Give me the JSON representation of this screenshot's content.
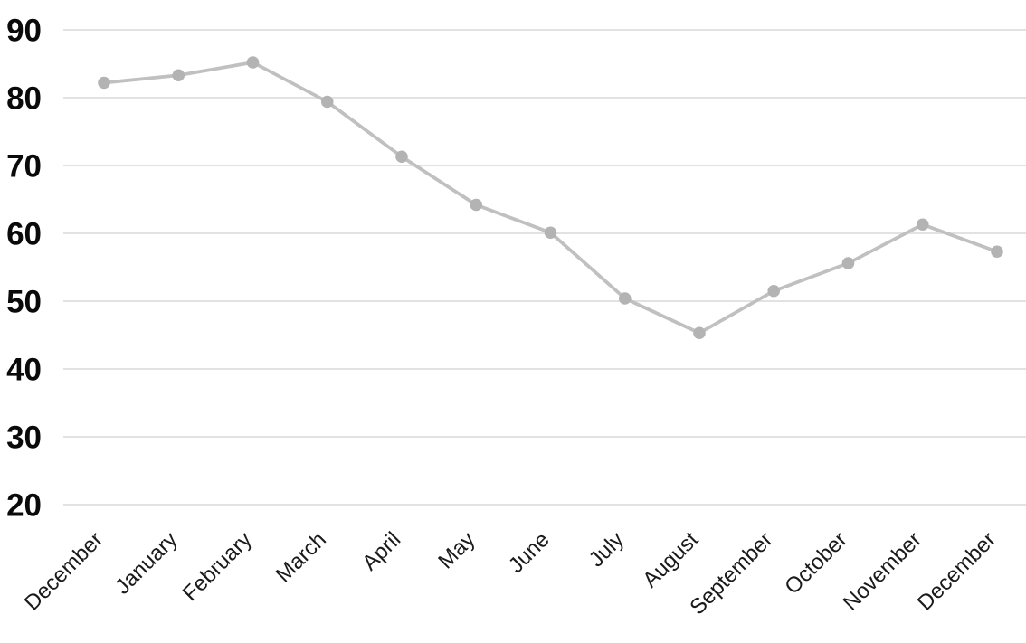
{
  "chart_data": {
    "type": "line",
    "title": "",
    "xlabel": "",
    "ylabel": "",
    "categories": [
      "December",
      "January",
      "February",
      "March",
      "April",
      "May",
      "June",
      "July",
      "August",
      "September",
      "October",
      "November",
      "December"
    ],
    "values": [
      82.2,
      83.3,
      85.2,
      79.4,
      71.3,
      64.2,
      60.1,
      50.4,
      45.3,
      51.5,
      55.6,
      61.3,
      57.3
    ],
    "ylim": [
      20,
      90
    ],
    "yticks": [
      90,
      80,
      70,
      60,
      50,
      40,
      30,
      20
    ],
    "grid": true,
    "legend": false,
    "x_tick_rotation_deg": -45,
    "colors": {
      "line": "#c0c0c0",
      "marker": "#b3b3b3",
      "gridline": "#d9d9d9",
      "y_tick_label": "#0a0a0a",
      "x_tick_label": "#1a1a1a",
      "background": "#ffffff"
    }
  }
}
